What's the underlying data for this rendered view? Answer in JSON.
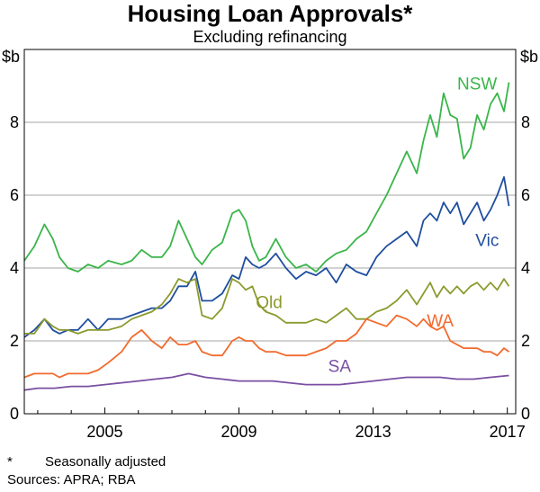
{
  "chart_data": {
    "type": "line",
    "title": "Housing Loan Approvals*",
    "subtitle": "Excluding refinancing",
    "ylabel_left": "$b",
    "ylabel_right": "$b",
    "xlim": [
      2002.6,
      2017.25
    ],
    "ylim": [
      0,
      10
    ],
    "yticks": [
      0,
      2,
      4,
      6,
      8
    ],
    "ytick_labels": [
      "0",
      "2",
      "4",
      "6",
      "8"
    ],
    "xticks": [
      2005,
      2009,
      2013,
      2017
    ],
    "xtick_labels": [
      "2005",
      "2009",
      "2013",
      "2017"
    ],
    "gridlines": [
      2,
      4,
      6,
      8
    ],
    "series": [
      {
        "name": "NSW",
        "color": "#3ab54a",
        "x": [
          2002.6,
          2002.9,
          2003.2,
          2003.45,
          2003.65,
          2003.9,
          2004.2,
          2004.5,
          2004.8,
          2005.1,
          2005.5,
          2005.8,
          2006.1,
          2006.4,
          2006.7,
          2006.95,
          2007.2,
          2007.45,
          2007.7,
          2007.9,
          2008.2,
          2008.5,
          2008.8,
          2009.0,
          2009.2,
          2009.4,
          2009.6,
          2009.8,
          2010.1,
          2010.4,
          2010.7,
          2011.0,
          2011.3,
          2011.6,
          2011.9,
          2012.2,
          2012.5,
          2012.8,
          2013.1,
          2013.4,
          2013.7,
          2014.0,
          2014.3,
          2014.5,
          2014.7,
          2014.9,
          2015.1,
          2015.3,
          2015.5,
          2015.7,
          2015.9,
          2016.1,
          2016.3,
          2016.5,
          2016.7,
          2016.9,
          2017.05
        ],
        "values": [
          4.2,
          4.6,
          5.2,
          4.8,
          4.3,
          4.0,
          3.9,
          4.1,
          4.0,
          4.2,
          4.1,
          4.2,
          4.5,
          4.3,
          4.3,
          4.6,
          5.3,
          4.8,
          4.3,
          4.1,
          4.5,
          4.7,
          5.5,
          5.6,
          5.3,
          4.6,
          4.2,
          4.3,
          4.8,
          4.3,
          4.0,
          4.1,
          3.9,
          4.2,
          4.4,
          4.5,
          4.8,
          5.0,
          5.5,
          6.0,
          6.6,
          7.2,
          6.6,
          7.5,
          8.2,
          7.6,
          8.8,
          8.2,
          8.1,
          7.0,
          7.3,
          8.2,
          7.8,
          8.5,
          8.8,
          8.3,
          9.1
        ]
      },
      {
        "name": "Vic",
        "color": "#1f4e9e",
        "x": [
          2002.6,
          2002.9,
          2003.2,
          2003.45,
          2003.65,
          2003.9,
          2004.2,
          2004.5,
          2004.8,
          2005.1,
          2005.5,
          2005.8,
          2006.1,
          2006.4,
          2006.7,
          2006.95,
          2007.2,
          2007.45,
          2007.7,
          2007.9,
          2008.2,
          2008.5,
          2008.8,
          2009.0,
          2009.2,
          2009.4,
          2009.6,
          2009.8,
          2010.1,
          2010.4,
          2010.7,
          2011.0,
          2011.3,
          2011.6,
          2011.9,
          2012.2,
          2012.5,
          2012.8,
          2013.1,
          2013.4,
          2013.7,
          2014.0,
          2014.3,
          2014.5,
          2014.7,
          2014.9,
          2015.1,
          2015.3,
          2015.5,
          2015.7,
          2015.9,
          2016.1,
          2016.3,
          2016.5,
          2016.7,
          2016.9,
          2017.05
        ],
        "values": [
          2.1,
          2.3,
          2.6,
          2.3,
          2.2,
          2.3,
          2.3,
          2.6,
          2.3,
          2.6,
          2.6,
          2.7,
          2.8,
          2.9,
          2.9,
          3.1,
          3.5,
          3.5,
          3.9,
          3.1,
          3.1,
          3.3,
          3.8,
          3.7,
          4.3,
          4.1,
          4.0,
          4.1,
          4.4,
          4.0,
          3.7,
          3.9,
          3.8,
          4.0,
          3.6,
          4.1,
          3.9,
          3.8,
          4.3,
          4.6,
          4.8,
          5.0,
          4.6,
          5.3,
          5.5,
          5.3,
          5.8,
          5.5,
          5.8,
          5.2,
          5.5,
          5.8,
          5.3,
          5.6,
          6.0,
          6.5,
          5.7
        ]
      },
      {
        "name": "Qld",
        "color": "#8c9a2e",
        "x": [
          2002.6,
          2002.9,
          2003.2,
          2003.45,
          2003.65,
          2003.9,
          2004.2,
          2004.5,
          2004.8,
          2005.1,
          2005.5,
          2005.8,
          2006.1,
          2006.4,
          2006.7,
          2006.95,
          2007.2,
          2007.45,
          2007.7,
          2007.9,
          2008.2,
          2008.5,
          2008.8,
          2009.0,
          2009.2,
          2009.4,
          2009.6,
          2009.8,
          2010.1,
          2010.4,
          2010.7,
          2011.0,
          2011.3,
          2011.6,
          2011.9,
          2012.2,
          2012.5,
          2012.8,
          2013.1,
          2013.4,
          2013.7,
          2014.0,
          2014.3,
          2014.5,
          2014.7,
          2014.9,
          2015.1,
          2015.3,
          2015.5,
          2015.7,
          2015.9,
          2016.1,
          2016.3,
          2016.5,
          2016.7,
          2016.9,
          2017.05
        ],
        "values": [
          2.2,
          2.2,
          2.6,
          2.4,
          2.3,
          2.3,
          2.2,
          2.3,
          2.3,
          2.3,
          2.4,
          2.6,
          2.7,
          2.8,
          3.0,
          3.3,
          3.7,
          3.6,
          3.7,
          2.7,
          2.6,
          2.9,
          3.7,
          3.6,
          3.4,
          3.5,
          3.0,
          2.8,
          2.7,
          2.5,
          2.5,
          2.5,
          2.6,
          2.5,
          2.7,
          2.9,
          2.6,
          2.6,
          2.8,
          2.9,
          3.1,
          3.4,
          3.0,
          3.3,
          3.6,
          3.2,
          3.5,
          3.3,
          3.5,
          3.3,
          3.5,
          3.6,
          3.4,
          3.6,
          3.4,
          3.7,
          3.5
        ]
      },
      {
        "name": "WA",
        "color": "#f26a2e",
        "x": [
          2002.6,
          2002.9,
          2003.2,
          2003.45,
          2003.65,
          2003.9,
          2004.2,
          2004.5,
          2004.8,
          2005.1,
          2005.5,
          2005.8,
          2006.1,
          2006.4,
          2006.7,
          2006.95,
          2007.2,
          2007.45,
          2007.7,
          2007.9,
          2008.2,
          2008.5,
          2008.8,
          2009.0,
          2009.2,
          2009.4,
          2009.6,
          2009.8,
          2010.1,
          2010.4,
          2010.7,
          2011.0,
          2011.3,
          2011.6,
          2011.9,
          2012.2,
          2012.5,
          2012.8,
          2013.1,
          2013.4,
          2013.7,
          2014.0,
          2014.3,
          2014.5,
          2014.7,
          2014.9,
          2015.1,
          2015.3,
          2015.5,
          2015.7,
          2015.9,
          2016.1,
          2016.3,
          2016.5,
          2016.7,
          2016.9,
          2017.05
        ],
        "values": [
          1.0,
          1.1,
          1.1,
          1.1,
          1.0,
          1.1,
          1.1,
          1.1,
          1.2,
          1.4,
          1.7,
          2.1,
          2.3,
          2.0,
          1.8,
          2.1,
          1.9,
          1.9,
          2.0,
          1.7,
          1.6,
          1.6,
          2.0,
          2.1,
          2.0,
          2.0,
          1.8,
          1.7,
          1.7,
          1.6,
          1.6,
          1.6,
          1.7,
          1.8,
          2.0,
          2.0,
          2.2,
          2.6,
          2.5,
          2.4,
          2.7,
          2.6,
          2.4,
          2.6,
          2.4,
          2.3,
          2.4,
          2.0,
          1.9,
          1.8,
          1.8,
          1.8,
          1.7,
          1.7,
          1.6,
          1.8,
          1.7
        ]
      },
      {
        "name": "SA",
        "color": "#7a4fa3",
        "x": [
          2002.6,
          2003.0,
          2003.5,
          2004.0,
          2004.5,
          2005.0,
          2005.5,
          2006.0,
          2006.5,
          2007.0,
          2007.5,
          2008.0,
          2008.5,
          2009.0,
          2009.5,
          2010.0,
          2010.5,
          2011.0,
          2011.5,
          2012.0,
          2012.5,
          2013.0,
          2013.5,
          2014.0,
          2014.5,
          2015.0,
          2015.5,
          2016.0,
          2016.5,
          2017.05
        ],
        "values": [
          0.65,
          0.7,
          0.7,
          0.75,
          0.75,
          0.8,
          0.85,
          0.9,
          0.95,
          1.0,
          1.1,
          1.0,
          0.95,
          0.9,
          0.9,
          0.9,
          0.85,
          0.8,
          0.8,
          0.8,
          0.85,
          0.9,
          0.95,
          1.0,
          1.0,
          1.0,
          0.95,
          0.95,
          1.0,
          1.05
        ]
      }
    ],
    "annotations": [
      {
        "text": "NSW",
        "x": 2016.1,
        "y": 8.9,
        "series": "NSW"
      },
      {
        "text": "Vic",
        "x": 2016.4,
        "y": 4.6,
        "series": "Vic"
      },
      {
        "text": "Qld",
        "x": 2009.9,
        "y": 2.9,
        "series": "Qld"
      },
      {
        "text": "WA",
        "x": 2015.0,
        "y": 2.4,
        "series": "WA"
      },
      {
        "text": "SA",
        "x": 2012.0,
        "y": 1.15,
        "series": "SA"
      }
    ]
  },
  "footnotes": {
    "marker": "*",
    "note": "Seasonally adjusted",
    "sources": "Sources: APRA; RBA"
  }
}
